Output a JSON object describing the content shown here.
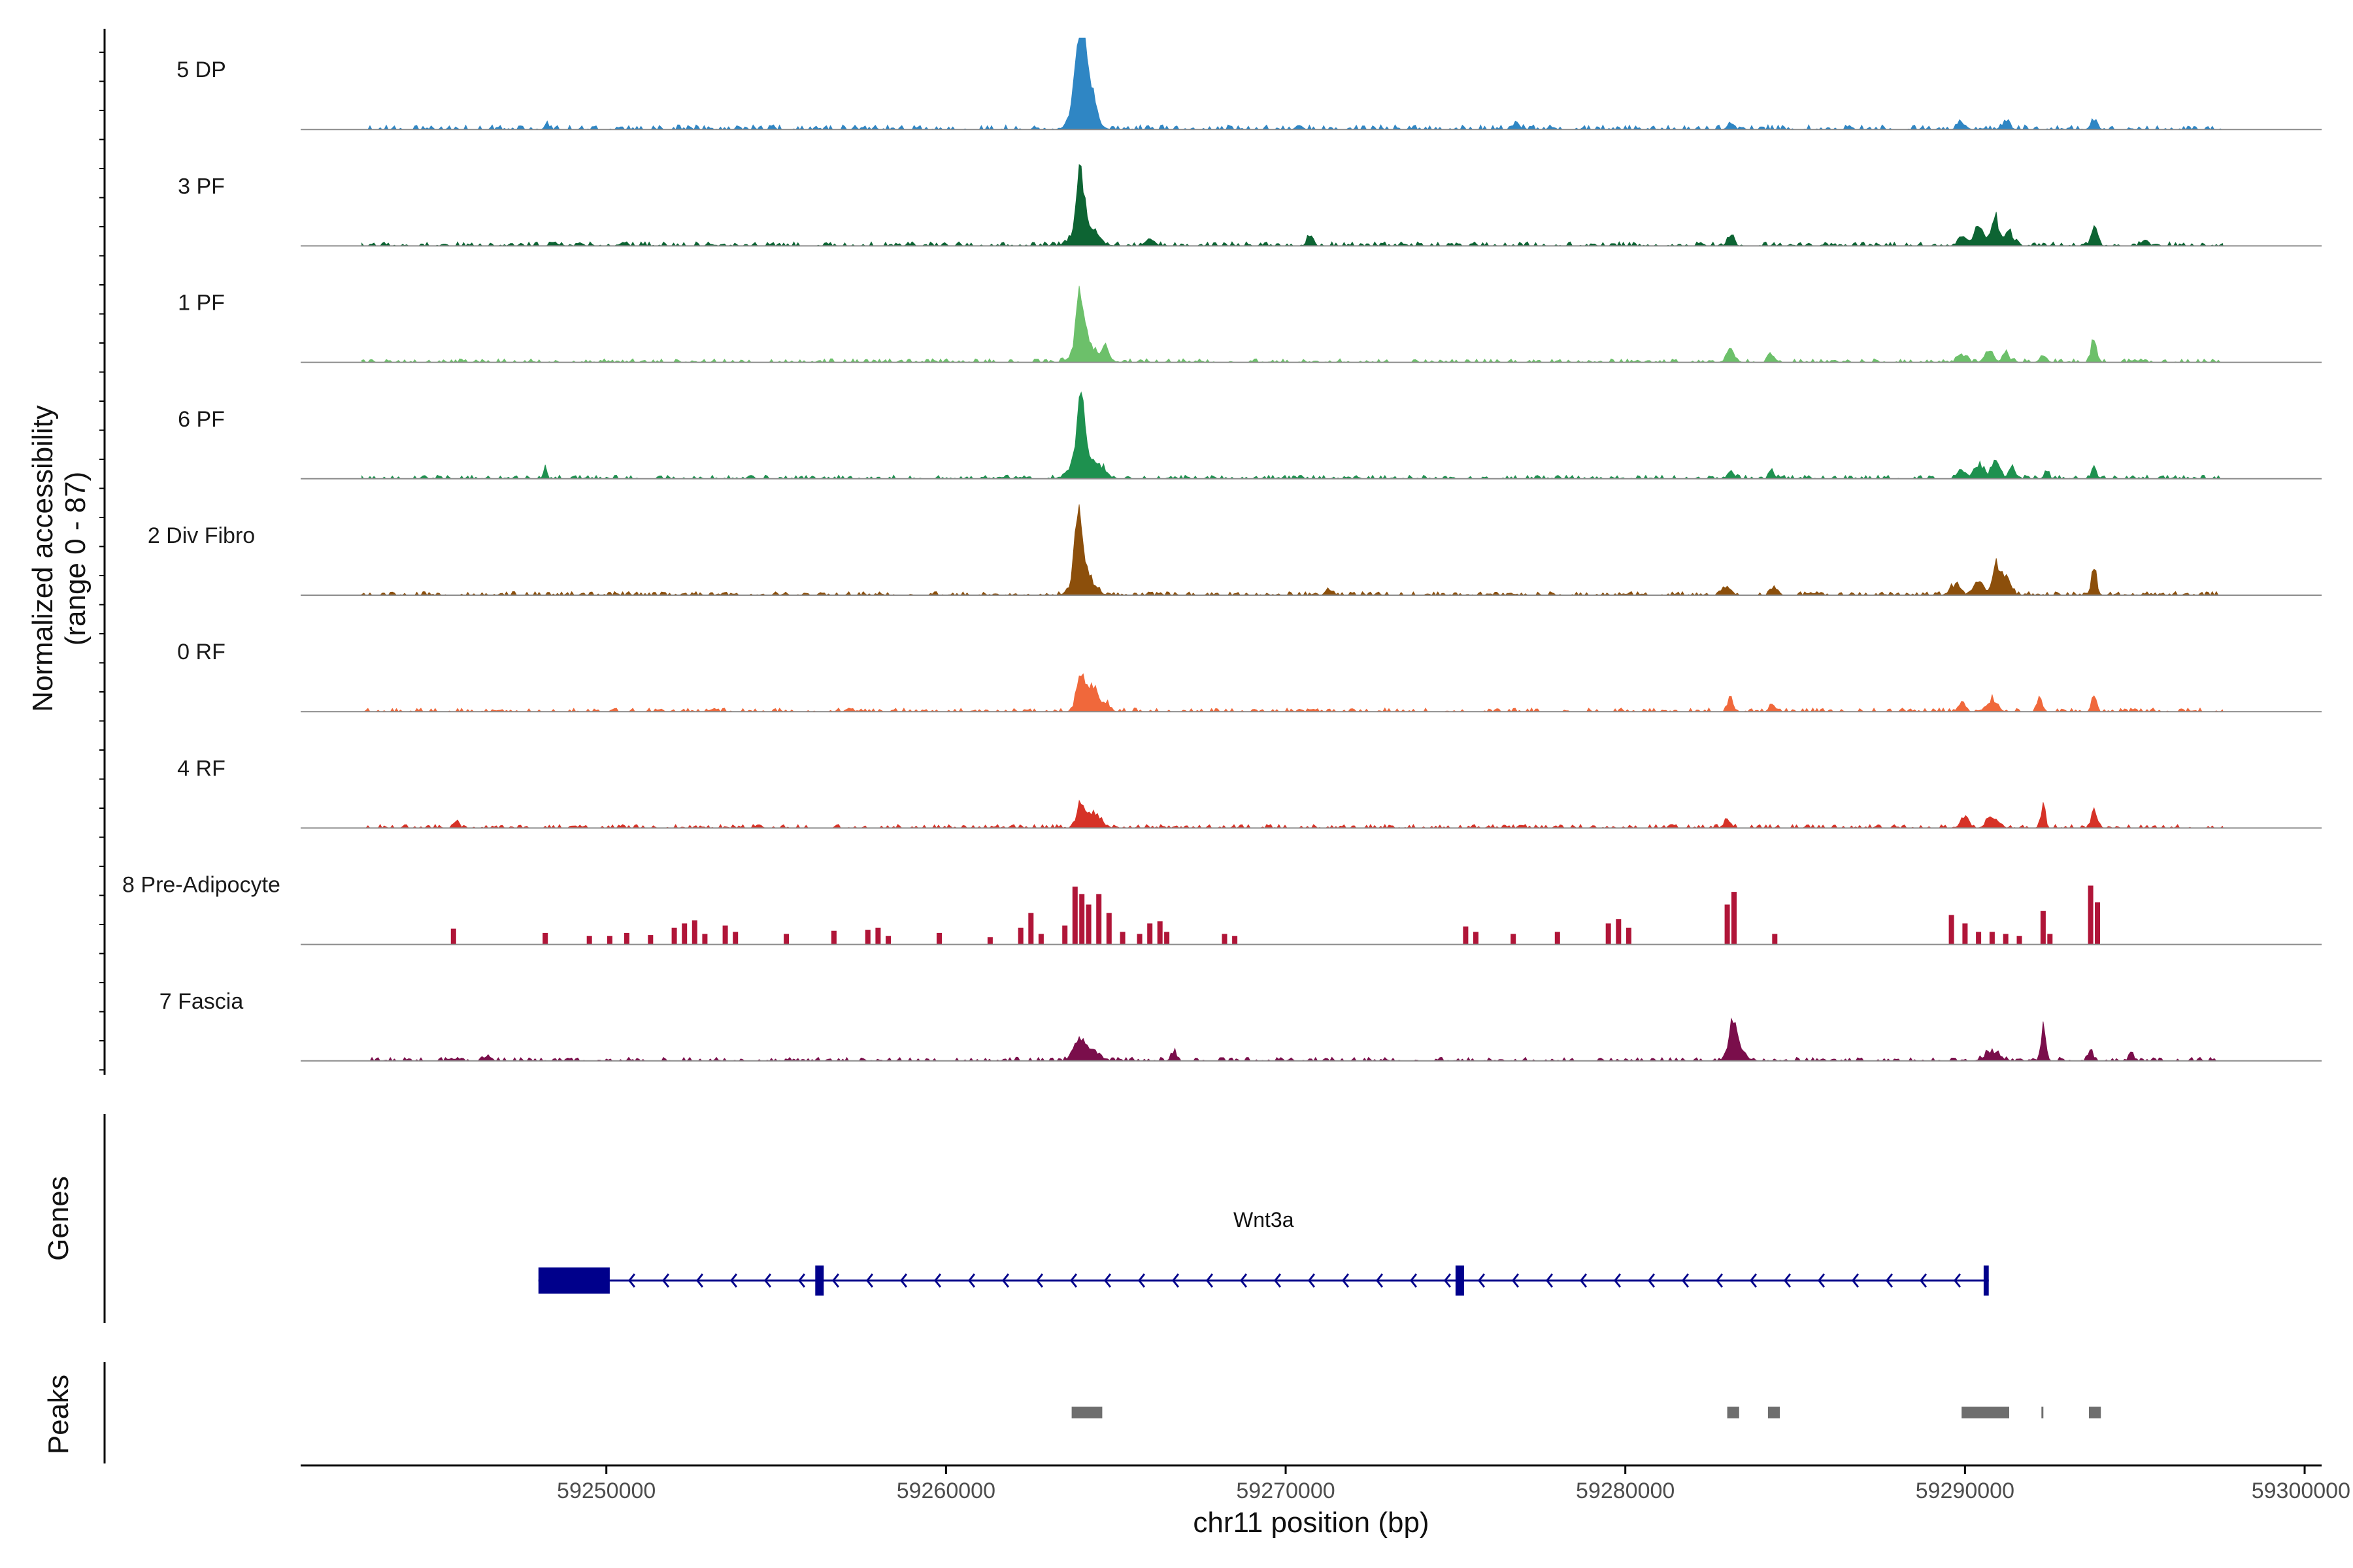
{
  "chart_data": {
    "type": "area",
    "chromosome": "chr11",
    "xlabel": "chr11 position (bp)",
    "ylabel_line1": "Normalized accessibility",
    "ylabel_line2": "(range 0 - 87)",
    "y_range": [
      0,
      87
    ],
    "x_range": [
      59241000,
      59300500
    ],
    "x_ticks": [
      59250000,
      59260000,
      59270000,
      59280000,
      59290000,
      59300000
    ],
    "x_tick_labels": [
      "59250000",
      "59260000",
      "59270000",
      "59280000",
      "59290000",
      "59300000"
    ],
    "data_extent": [
      59242800,
      59297600
    ],
    "tracks": [
      {
        "name": "5 DP",
        "color": "#2f86c4",
        "peaks": [
          [
            59263950,
            87,
            120
          ],
          [
            59264050,
            40,
            250
          ],
          [
            59264300,
            14,
            120
          ],
          [
            59248250,
            6,
            60
          ],
          [
            59263700,
            6,
            120
          ],
          [
            59283100,
            6,
            90
          ],
          [
            59289900,
            6,
            120
          ],
          [
            59291200,
            7,
            120
          ],
          [
            59293800,
            10,
            90
          ],
          [
            59270400,
            4,
            90
          ],
          [
            59276800,
            6,
            90
          ]
        ],
        "noise": [
          0.5,
          4.0,
          0.4
        ]
      },
      {
        "name": "3 PF",
        "color": "#0d6433",
        "peaks": [
          [
            59263950,
            50,
            110
          ],
          [
            59264100,
            20,
            300
          ],
          [
            59270700,
            12,
            70
          ],
          [
            59283100,
            10,
            90
          ],
          [
            59289900,
            8,
            120
          ],
          [
            59290400,
            16,
            150
          ],
          [
            59290900,
            25,
            110
          ],
          [
            59291300,
            14,
            120
          ],
          [
            59293800,
            20,
            90
          ],
          [
            59295300,
            7,
            90
          ],
          [
            59266000,
            8,
            120
          ]
        ],
        "noise": [
          0.5,
          3.5,
          0.45
        ]
      },
      {
        "name": "1 PF",
        "color": "#6cc06a",
        "peaks": [
          [
            59263950,
            52,
            110
          ],
          [
            59264100,
            18,
            280
          ],
          [
            59264700,
            12,
            120
          ],
          [
            59283100,
            11,
            120
          ],
          [
            59284300,
            7,
            90
          ],
          [
            59289900,
            8,
            120
          ],
          [
            59290700,
            12,
            120
          ],
          [
            59291200,
            9,
            100
          ],
          [
            59292300,
            8,
            90
          ],
          [
            59293800,
            21,
            80
          ]
        ],
        "noise": [
          0.5,
          3.0,
          0.4
        ]
      },
      {
        "name": "6 PF",
        "color": "#1e914f",
        "peaks": [
          [
            59263950,
            57,
            110
          ],
          [
            59264050,
            24,
            300
          ],
          [
            59264600,
            7,
            150
          ],
          [
            59248200,
            10,
            50
          ],
          [
            59283100,
            7,
            90
          ],
          [
            59284300,
            11,
            70
          ],
          [
            59289900,
            9,
            120
          ],
          [
            59290400,
            14,
            130
          ],
          [
            59290900,
            20,
            120
          ],
          [
            59291400,
            10,
            100
          ],
          [
            59292400,
            8,
            70
          ],
          [
            59293800,
            11,
            70
          ]
        ],
        "noise": [
          0.5,
          3.0,
          0.4
        ]
      },
      {
        "name": "2 Div Fibro",
        "color": "#8c4f0b",
        "peaks": [
          [
            59263900,
            62,
            110
          ],
          [
            59264050,
            24,
            250
          ],
          [
            59283000,
            8,
            120
          ],
          [
            59284400,
            8,
            100
          ],
          [
            59289700,
            10,
            140
          ],
          [
            59290400,
            14,
            140
          ],
          [
            59290900,
            28,
            110
          ],
          [
            59291200,
            18,
            130
          ],
          [
            59293800,
            24,
            80
          ],
          [
            59271300,
            6,
            90
          ]
        ],
        "noise": [
          0.5,
          3.0,
          0.45
        ]
      },
      {
        "name": "0 RF",
        "color": "#f0683b",
        "peaks": [
          [
            59263950,
            36,
            110
          ],
          [
            59264300,
            22,
            160
          ],
          [
            59264700,
            8,
            120
          ],
          [
            59283100,
            12,
            80
          ],
          [
            59284300,
            7,
            70
          ],
          [
            59289900,
            8,
            100
          ],
          [
            59290800,
            12,
            140
          ],
          [
            59292200,
            15,
            70
          ],
          [
            59293800,
            16,
            70
          ]
        ],
        "noise": [
          0.5,
          3.0,
          0.4
        ]
      },
      {
        "name": "4 RF",
        "color": "#d63227",
        "peaks": [
          [
            59263950,
            22,
            110
          ],
          [
            59264350,
            14,
            200
          ],
          [
            59283000,
            7,
            100
          ],
          [
            59290000,
            10,
            120
          ],
          [
            59290800,
            10,
            150
          ],
          [
            59292300,
            22,
            60
          ],
          [
            59293800,
            18,
            70
          ],
          [
            59245600,
            6,
            70
          ]
        ],
        "noise": [
          0.5,
          3.0,
          0.4
        ]
      },
      {
        "name": "8 Pre-Adipocyte",
        "color": "#b01538",
        "bars": [
          [
            59245500,
            15
          ],
          [
            59248200,
            11
          ],
          [
            59249500,
            8
          ],
          [
            59250100,
            8
          ],
          [
            59250600,
            11
          ],
          [
            59251300,
            9
          ],
          [
            59252000,
            16
          ],
          [
            59252300,
            20
          ],
          [
            59252600,
            23
          ],
          [
            59252900,
            10
          ],
          [
            59253500,
            18
          ],
          [
            59253800,
            12
          ],
          [
            59255300,
            10
          ],
          [
            59256700,
            13
          ],
          [
            59257700,
            14
          ],
          [
            59258000,
            16
          ],
          [
            59258300,
            8
          ],
          [
            59259800,
            11
          ],
          [
            59261300,
            7
          ],
          [
            59262200,
            16
          ],
          [
            59262500,
            30
          ],
          [
            59262800,
            10
          ],
          [
            59263500,
            18
          ],
          [
            59263800,
            55
          ],
          [
            59264000,
            48
          ],
          [
            59264200,
            38
          ],
          [
            59264500,
            48
          ],
          [
            59264800,
            30
          ],
          [
            59265200,
            12
          ],
          [
            59265700,
            10
          ],
          [
            59266000,
            20
          ],
          [
            59266300,
            22
          ],
          [
            59266500,
            12
          ],
          [
            59268200,
            10
          ],
          [
            59268500,
            8
          ],
          [
            59275300,
            17
          ],
          [
            59275600,
            12
          ],
          [
            59276700,
            10
          ],
          [
            59278000,
            12
          ],
          [
            59279500,
            20
          ],
          [
            59279800,
            24
          ],
          [
            59280100,
            16
          ],
          [
            59283000,
            38
          ],
          [
            59283200,
            50
          ],
          [
            59284400,
            10
          ],
          [
            59289600,
            28
          ],
          [
            59290000,
            20
          ],
          [
            59290400,
            12
          ],
          [
            59290800,
            12
          ],
          [
            59291200,
            10
          ],
          [
            59291600,
            8
          ],
          [
            59292300,
            32
          ],
          [
            59292500,
            10
          ],
          [
            59293700,
            56
          ],
          [
            59293900,
            40
          ]
        ],
        "noise": [
          0,
          0,
          0
        ]
      },
      {
        "name": "7 Fascia",
        "color": "#7a0e4b",
        "peaks": [
          [
            59263900,
            18,
            160
          ],
          [
            59264300,
            10,
            220
          ],
          [
            59266700,
            8,
            80
          ],
          [
            59283150,
            34,
            100
          ],
          [
            59283300,
            12,
            200
          ],
          [
            59290800,
            9,
            200
          ],
          [
            59292300,
            30,
            70
          ],
          [
            59293700,
            11,
            70
          ],
          [
            59294900,
            7,
            70
          ],
          [
            59246500,
            5,
            100
          ]
        ],
        "noise": [
          0.5,
          3.0,
          0.4
        ]
      }
    ],
    "gene": {
      "name": "Wnt3a",
      "strand": "-",
      "start": 59248000,
      "end": 59290700,
      "exons": [
        [
          59248000,
          59250100
        ],
        [
          59256150,
          59256400
        ],
        [
          59275000,
          59275250
        ],
        [
          59290550,
          59290700
        ]
      ]
    },
    "peaks_track": [
      [
        59263700,
        59264600
      ],
      [
        59283000,
        59283350
      ],
      [
        59284200,
        59284550
      ],
      [
        59289900,
        59291300
      ],
      [
        59292250,
        59292300
      ],
      [
        59293650,
        59294000
      ]
    ],
    "panel_titles": {
      "genes": "Genes",
      "peaks": "Peaks"
    },
    "colors": {
      "gene": "#00008b",
      "peak_region": "#6e6e6e",
      "baseline": "#8c8c8c",
      "axis": "#000000"
    }
  }
}
